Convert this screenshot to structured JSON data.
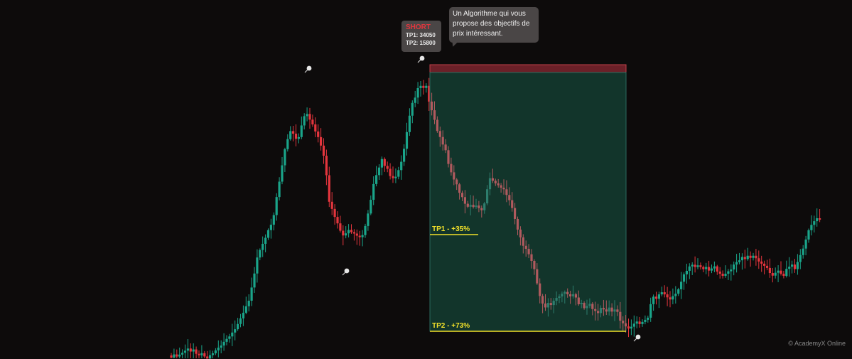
{
  "colors": {
    "background": "#0d0b0b",
    "bullish": "#1aa58a",
    "bearish": "#e4353d",
    "zone_fill": "#12392f",
    "zone_border": "#2a6b5f",
    "stop_fill": "#6b2028",
    "tp_line": "#f2e12a"
  },
  "signal": {
    "title": "SHORT",
    "tp1": "TP1: 34050",
    "tp2": "TP2: 15800"
  },
  "callout": {
    "line1": "Un Algorithme qui vous",
    "line2": "propose des objectifs de",
    "line3": "prix intéressant."
  },
  "watermark": "© AcademyX Online",
  "chart_data": {
    "type": "candlestick",
    "grid": false,
    "candle_count": 236,
    "annotations": [
      {
        "kind": "target",
        "label": "TP1 - +35%",
        "price": 34050
      },
      {
        "kind": "target",
        "label": "TP2 - +73%",
        "price": 15800
      },
      {
        "kind": "marker",
        "icon": "pin-icon",
        "note": "swing high"
      },
      {
        "kind": "marker",
        "icon": "pin-icon",
        "note": "swing low"
      },
      {
        "kind": "marker",
        "icon": "pin-icon",
        "note": "signal"
      },
      {
        "kind": "marker",
        "icon": "pin-icon",
        "note": "bottom"
      }
    ]
  }
}
